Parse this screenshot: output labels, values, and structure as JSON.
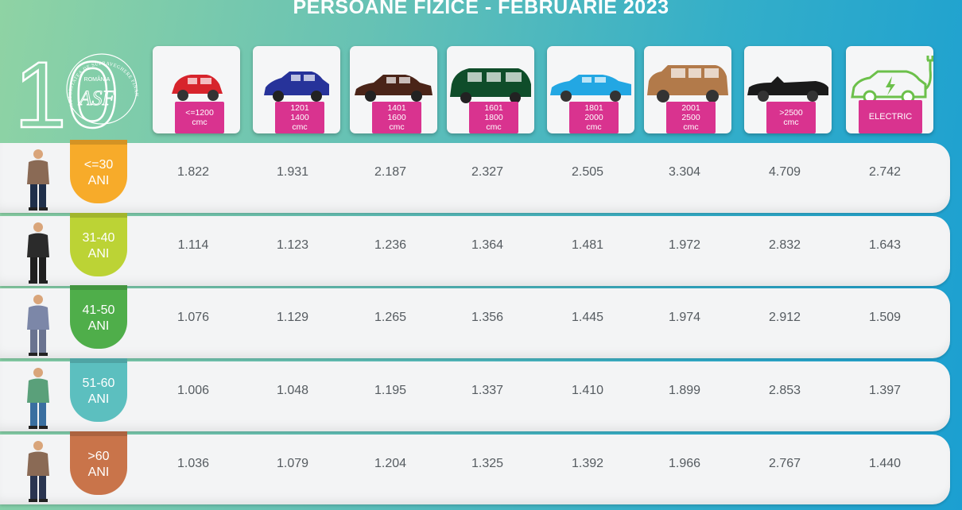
{
  "title": "PERSOANE FIZICE - FEBRUARIE 2023",
  "logo": {
    "number": "10",
    "country": "ROMÂNIA",
    "monogram": "ASF",
    "ring_text": "AUTORITATEA DE SUPRAVEGHERE FINANCIARĂ"
  },
  "vehicles": [
    {
      "name": "car-small",
      "line1": "<=1200",
      "line2": "cmc",
      "line3": "",
      "color": "#d7242c"
    },
    {
      "name": "car-compact",
      "line1": "1201",
      "line2": "1400",
      "line3": "cmc",
      "color": "#27339a"
    },
    {
      "name": "car-sedan",
      "line1": "1401",
      "line2": "1600",
      "line3": "cmc",
      "color": "#4a2418"
    },
    {
      "name": "car-minivan",
      "line1": "1601",
      "line2": "1800",
      "line3": "cmc",
      "color": "#0f4d2a"
    },
    {
      "name": "car-coupe",
      "line1": "1801",
      "line2": "2000",
      "line3": "cmc",
      "color": "#23a7e3"
    },
    {
      "name": "car-suv",
      "line1": "2001",
      "line2": "2500",
      "line3": "cmc",
      "color": "#b27a4a"
    },
    {
      "name": "car-convertible",
      "line1": ">2500",
      "line2": "cmc",
      "line3": "",
      "color": "#1a1a1a"
    },
    {
      "name": "car-electric",
      "line1": "ELECTRIC",
      "line2": "",
      "line3": "",
      "color": "#6cc04a"
    }
  ],
  "rows": [
    {
      "age_line1": "<=30",
      "age_line2": "ANI",
      "age_color": "#f7ab2a",
      "values": [
        "1.822",
        "1.931",
        "2.187",
        "2.327",
        "2.505",
        "3.304",
        "4.709",
        "2.742"
      ]
    },
    {
      "age_line1": "31-40",
      "age_line2": "ANI",
      "age_color": "#bcd335",
      "values": [
        "1.114",
        "1.123",
        "1.236",
        "1.364",
        "1.481",
        "1.972",
        "2.832",
        "1.643"
      ]
    },
    {
      "age_line1": "41-50",
      "age_line2": "ANI",
      "age_color": "#4fae4a",
      "values": [
        "1.076",
        "1.129",
        "1.265",
        "1.356",
        "1.445",
        "1.974",
        "2.912",
        "1.509"
      ]
    },
    {
      "age_line1": "51-60",
      "age_line2": "ANI",
      "age_color": "#5cbfbf",
      "values": [
        "1.006",
        "1.048",
        "1.195",
        "1.337",
        "1.410",
        "1.899",
        "2.853",
        "1.397"
      ]
    },
    {
      "age_line1": ">60",
      "age_line2": "ANI",
      "age_color": "#c9744a",
      "values": [
        "1.036",
        "1.079",
        "1.204",
        "1.325",
        "1.392",
        "1.966",
        "2.767",
        "1.440"
      ]
    }
  ]
}
